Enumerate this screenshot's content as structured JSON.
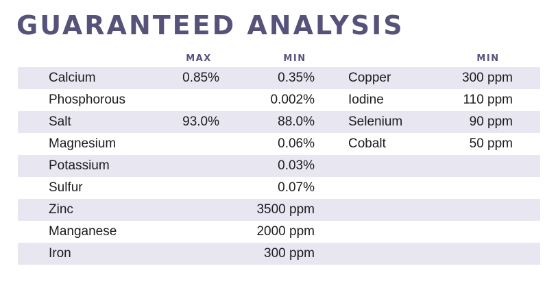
{
  "title": "GUARANTEED ANALYSIS",
  "headers": {
    "max": "MAX",
    "min": "MIN",
    "min2": "MIN"
  },
  "rows": [
    {
      "name": "Calcium",
      "max": "0.85%",
      "min": "0.35%",
      "name2": "Copper",
      "min2": "300 ppm"
    },
    {
      "name": "Phosphorous",
      "max": "",
      "min": "0.002%",
      "name2": "Iodine",
      "min2": "110 ppm"
    },
    {
      "name": "Salt",
      "max": "93.0%",
      "min": "88.0%",
      "name2": "Selenium",
      "min2": "90 ppm"
    },
    {
      "name": "Magnesium",
      "max": "",
      "min": "0.06%",
      "name2": "Cobalt",
      "min2": "50 ppm"
    },
    {
      "name": "Potassium",
      "max": "",
      "min": "0.03%",
      "name2": "",
      "min2": ""
    },
    {
      "name": "Sulfur",
      "max": "",
      "min": "0.07%",
      "name2": "",
      "min2": ""
    },
    {
      "name": "Zinc",
      "max": "",
      "min": "3500 ppm",
      "name2": "",
      "min2": ""
    },
    {
      "name": "Manganese",
      "max": "",
      "min": "2000 ppm",
      "name2": "",
      "min2": ""
    },
    {
      "name": "Iron",
      "max": "",
      "min": "300 ppm",
      "name2": "",
      "min2": ""
    }
  ]
}
